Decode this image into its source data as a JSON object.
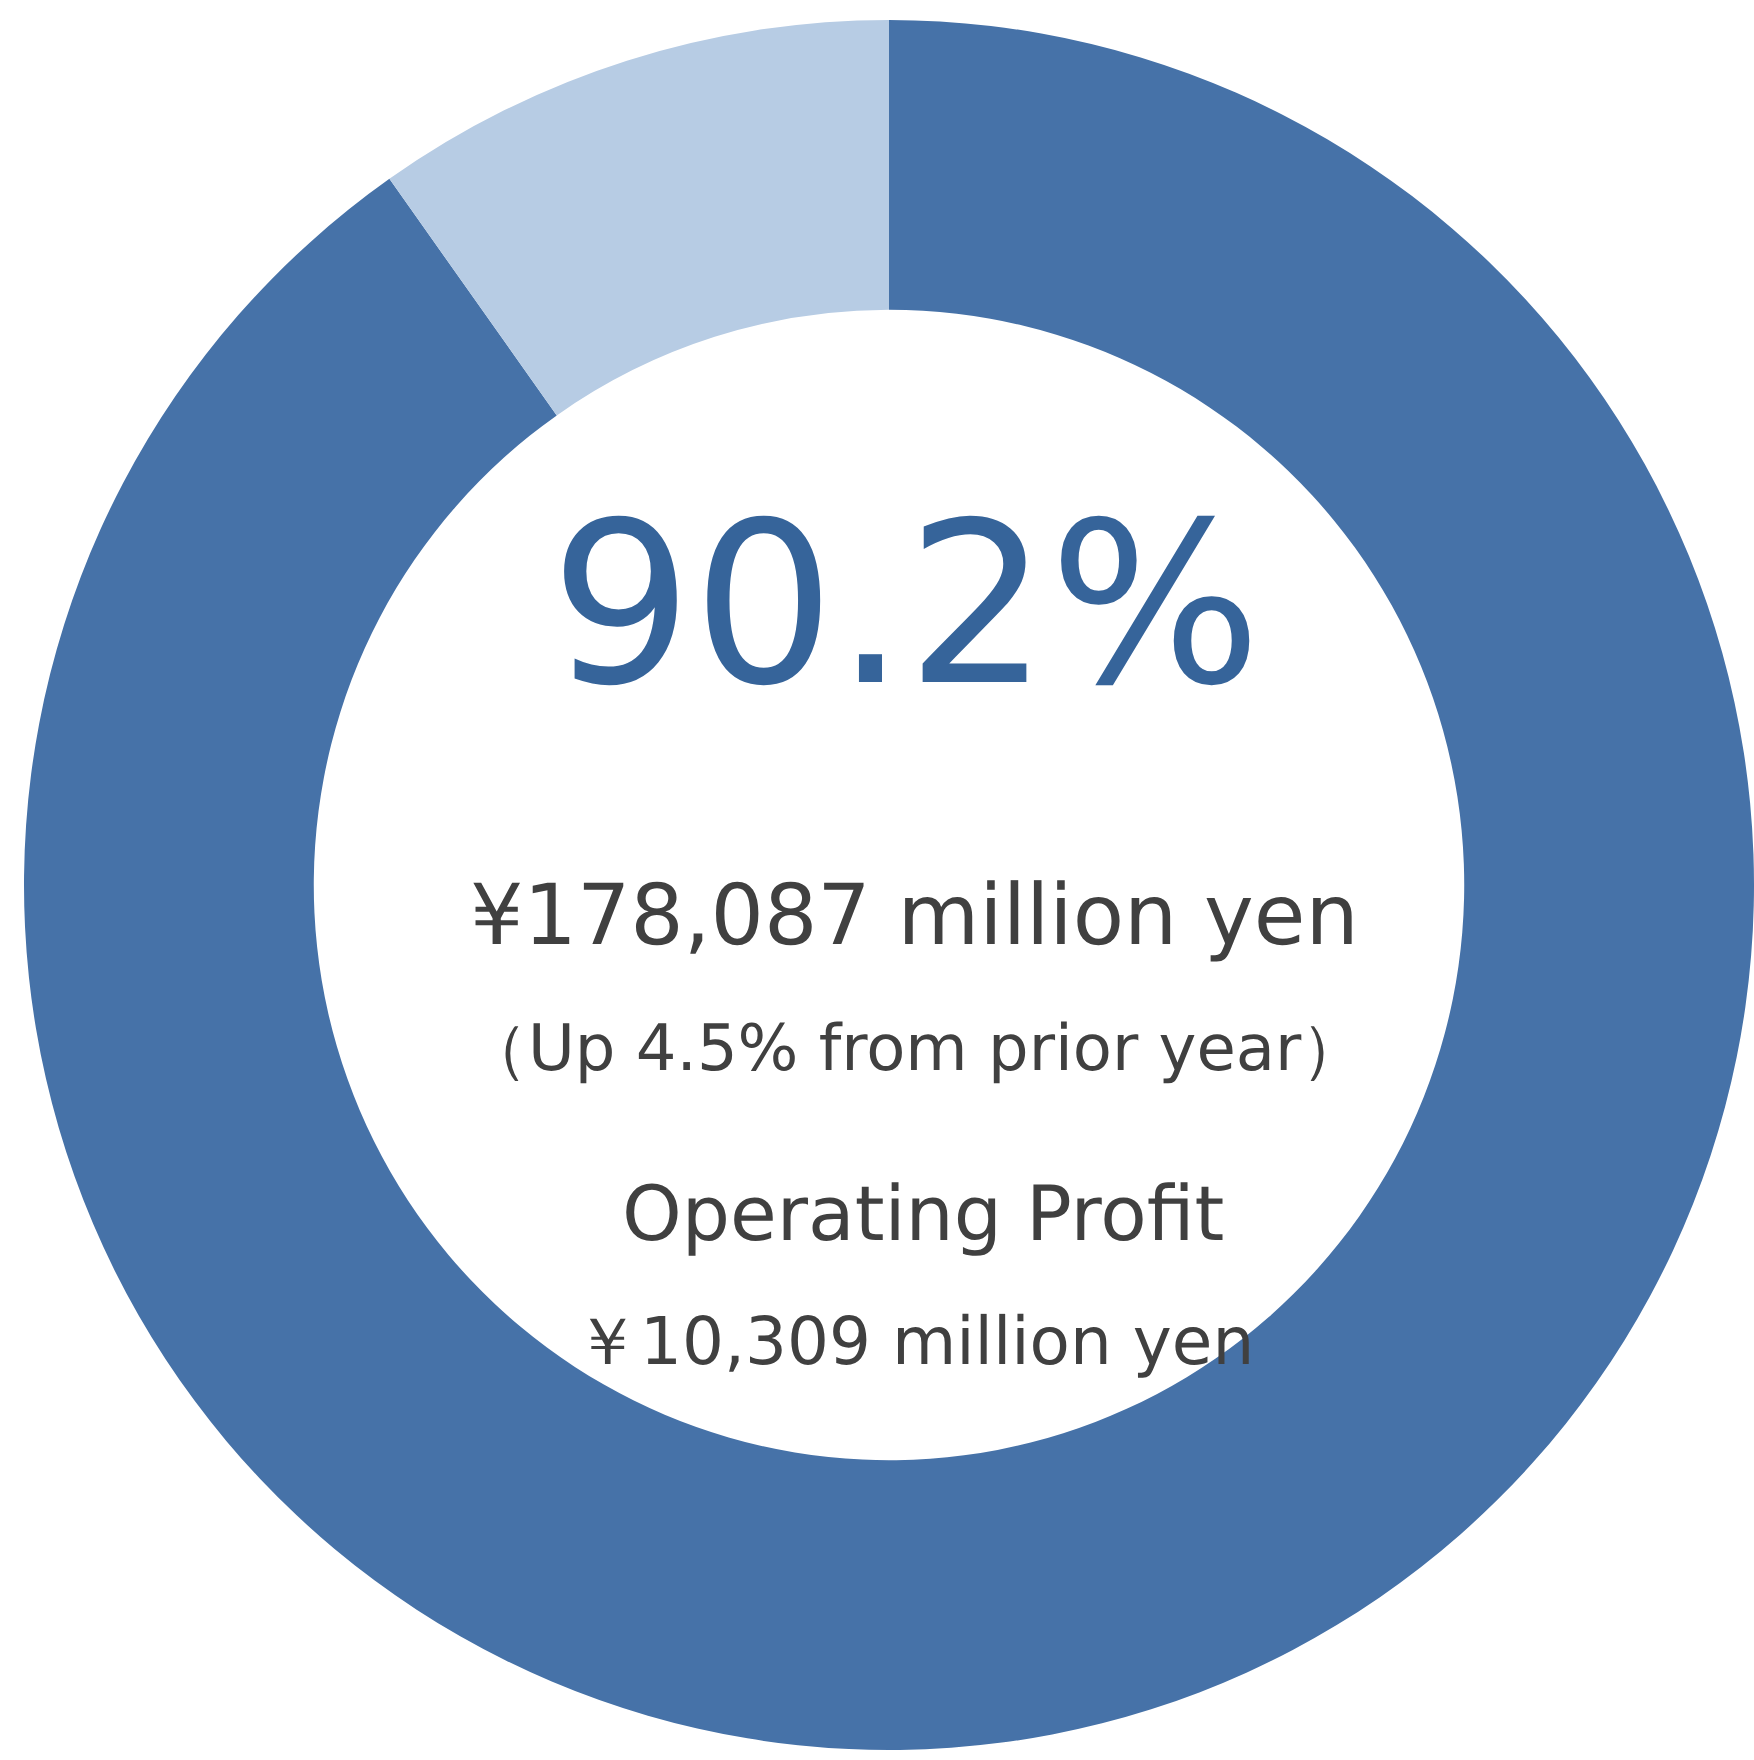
{
  "chart_data": {
    "type": "donut",
    "categories": [
      null,
      null
    ],
    "values": [
      90.2,
      9.8
    ],
    "colors": [
      "#4672a8",
      "#b7cce4"
    ],
    "legend": false,
    "annotations": [
      "90.2%",
      "¥178,087 million yen",
      "（Up 4.5% from prior year）",
      "Operating Profit",
      "￥10,309 million yen"
    ]
  }
}
